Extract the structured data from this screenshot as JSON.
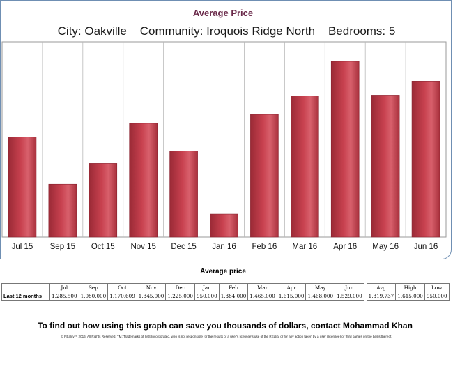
{
  "chart_data": {
    "type": "bar",
    "title": "Average Price",
    "subtitle": "City: Oakville    Community: Iroquois Ridge North    Bedrooms: 5",
    "categories": [
      "Jul 15",
      "Sep 15",
      "Oct 15",
      "Nov 15",
      "Dec 15",
      "Jan 16",
      "Feb 16",
      "Mar 16",
      "Apr 16",
      "May 16",
      "Jun 16"
    ],
    "values": [
      1285500,
      1080000,
      1170609,
      1345000,
      1225000,
      950000,
      1384000,
      1465000,
      1615000,
      1468000,
      1529000
    ],
    "ylim": [
      850000,
      1700000
    ],
    "xlabel": "",
    "ylabel": "",
    "grid": "vertical",
    "bar_color": "#c8414f"
  },
  "table": {
    "title": "Average price",
    "row_label": "Last 12 months",
    "months": [
      "Jul",
      "Sep",
      "Oct",
      "Nov",
      "Dec",
      "Jan",
      "Feb",
      "Mar",
      "Apr",
      "May",
      "Jun"
    ],
    "values": [
      "1,285,500",
      "1,080,000",
      "1,170,609",
      "1,345,000",
      "1,225,000",
      "950,000",
      "1,384,000",
      "1,465,000",
      "1,615,000",
      "1,468,000",
      "1,529,000"
    ],
    "summary_headers": [
      "Avg",
      "High",
      "Low"
    ],
    "summary_values": [
      "1,319,737",
      "1,615,000",
      "950,000"
    ]
  },
  "cta": "To find out how using this graph can save you thousands of dollars, contact Mohammad Khan",
  "disclaimer": "© REality™ 2016. All Rights Reserved. TM: Trademarks of IMS Incorporated, who is not responsible for the results of a user's licensee's use of the REality or for any action taken by a user (licensee) or third parties on the basis thereof."
}
